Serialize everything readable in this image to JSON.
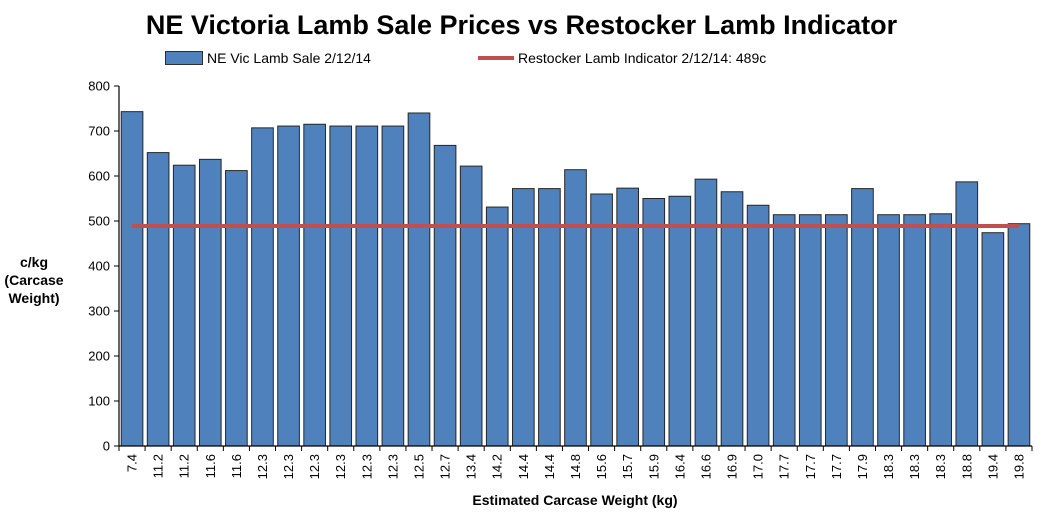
{
  "chart_data": {
    "type": "bar",
    "title": "NE Victoria Lamb Sale Prices vs Restocker Lamb Indicator",
    "xlabel": "Estimated Carcase Weight (kg)",
    "ylabel": "c/kg (Carcase Weight)",
    "ylabel_lines": [
      "c/kg",
      "(Carcase",
      "Weight)"
    ],
    "ylim": [
      0,
      800
    ],
    "yticks": [
      0,
      100,
      200,
      300,
      400,
      500,
      600,
      700,
      800
    ],
    "grid": false,
    "legend_position": "top",
    "categories": [
      "7.4",
      "11.2",
      "11.2",
      "11.6",
      "11.6",
      "12.3",
      "12.3",
      "12.3",
      "12.3",
      "12.3",
      "12.3",
      "12.5",
      "12.7",
      "13.4",
      "14.2",
      "14.4",
      "14.4",
      "14.8",
      "15.6",
      "15.7",
      "15.9",
      "16.4",
      "16.6",
      "16.9",
      "17.0",
      "17.7",
      "17.7",
      "17.7",
      "17.9",
      "18.3",
      "18.3",
      "18.3",
      "18.8",
      "19.4",
      "19.8"
    ],
    "series": [
      {
        "name": "NE Vic Lamb Sale 2/12/14",
        "type": "bar",
        "color": "#4f81bd",
        "values": [
          743,
          652,
          624,
          637,
          612,
          707,
          711,
          715,
          711,
          711,
          711,
          740,
          668,
          622,
          531,
          572,
          572,
          614,
          560,
          573,
          550,
          555,
          593,
          565,
          535,
          514,
          514,
          514,
          572,
          514,
          514,
          516,
          587,
          474,
          494
        ]
      },
      {
        "name": "Restocker Lamb Indicator 2/12/14: 489c",
        "type": "line",
        "color": "#c0504d",
        "value": 489
      }
    ]
  }
}
